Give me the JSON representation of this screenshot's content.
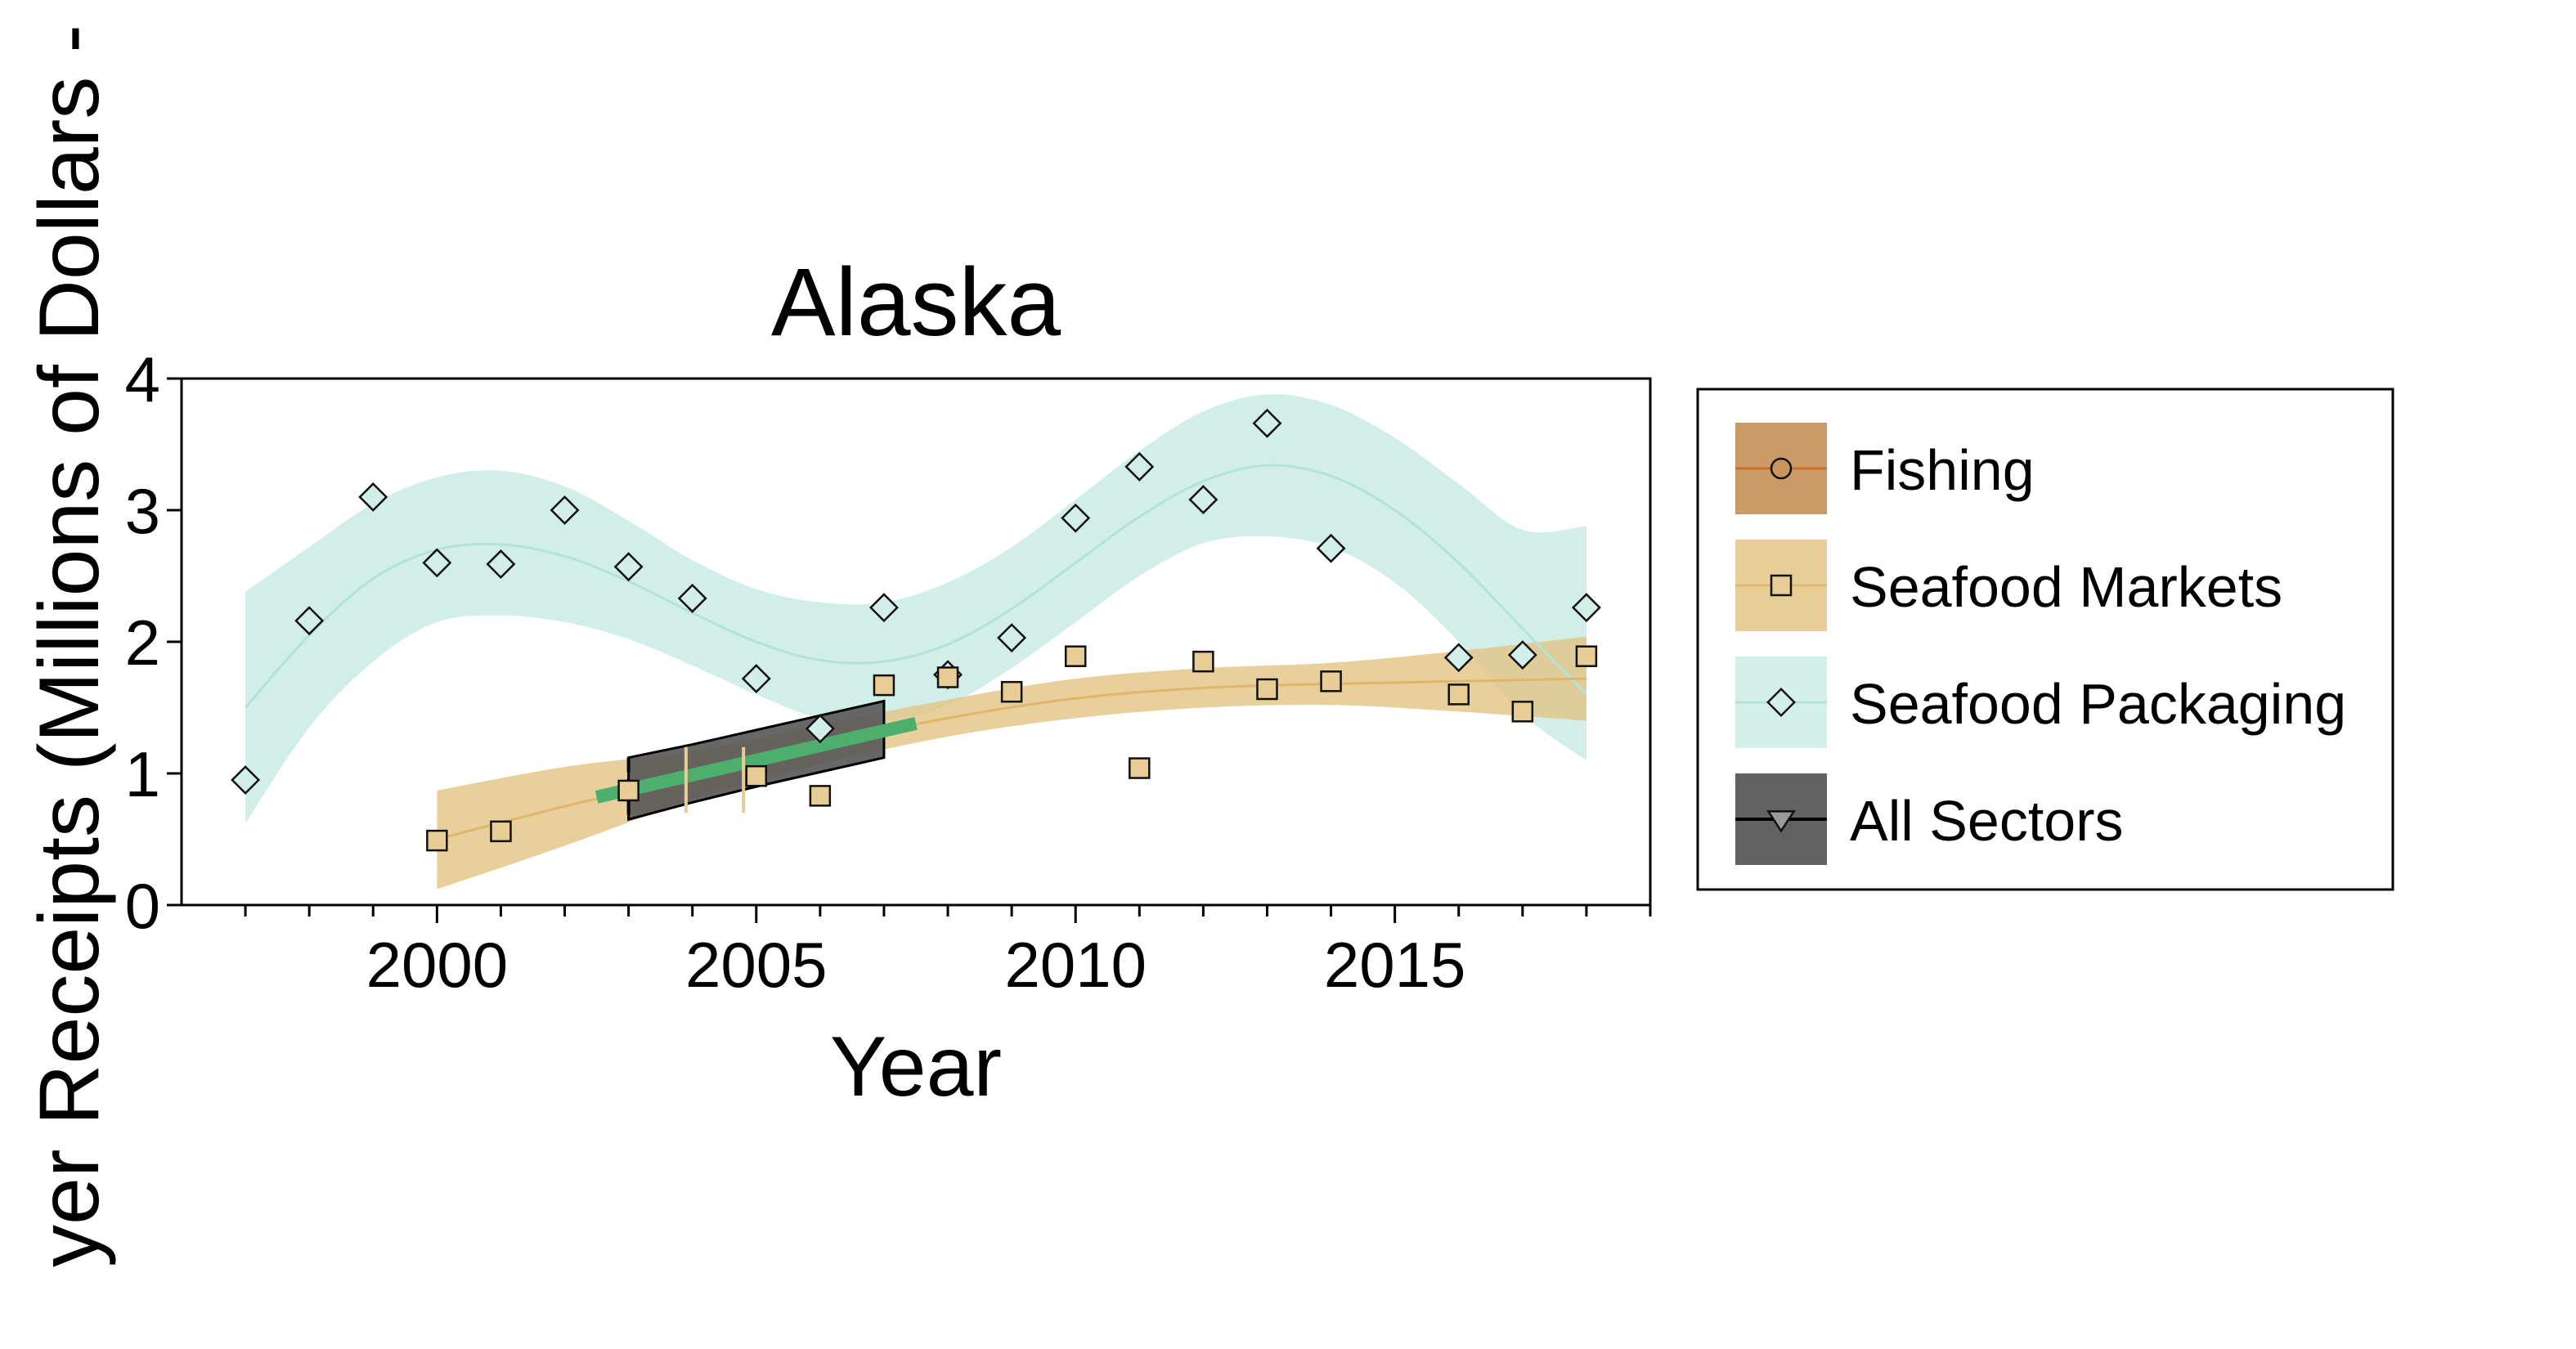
{
  "chart_data": {
    "type": "scatter",
    "title": "Alaska",
    "xlabel": "Year",
    "ylabel": "yer Receipts (Millions of Dollars -",
    "xlim": [
      1996,
      2019
    ],
    "ylim": [
      0,
      4
    ],
    "x_ticks": [
      2000,
      2005,
      2010,
      2015
    ],
    "x_tick_labels": [
      "2000",
      "2005",
      "2010",
      "2015"
    ],
    "y_ticks": [
      0,
      1,
      2,
      3,
      4
    ],
    "y_tick_labels": [
      "0",
      "1",
      "2",
      "3",
      "4"
    ],
    "grid": false,
    "legend_position": "right",
    "series": [
      {
        "name": "Fishing",
        "marker": "circle",
        "color": "#c8955f",
        "line_color": "#c8702a",
        "x": [],
        "y": []
      },
      {
        "name": "Seafood Markets",
        "marker": "square",
        "color": "#e8cc95",
        "line_color": "#e0b76a",
        "x": [
          2000,
          2001,
          2003,
          2005,
          2006,
          2007,
          2008,
          2009,
          2010,
          2011,
          2012,
          2013,
          2014,
          2016,
          2017,
          2018
        ],
        "y": [
          0.49,
          0.56,
          0.87,
          0.98,
          0.83,
          1.67,
          1.73,
          1.62,
          1.89,
          1.04,
          1.85,
          1.64,
          1.7,
          1.6,
          1.47,
          1.89
        ],
        "fit": {
          "x": [
            2000,
            2002,
            2004,
            2006,
            2008,
            2010,
            2012,
            2014,
            2016,
            2018
          ],
          "y": [
            0.5,
            0.75,
            0.98,
            1.22,
            1.42,
            1.57,
            1.65,
            1.68,
            1.7,
            1.72
          ],
          "lower": [
            0.12,
            0.45,
            0.8,
            1.07,
            1.28,
            1.42,
            1.5,
            1.52,
            1.47,
            1.4
          ],
          "upper": [
            0.87,
            1.05,
            1.17,
            1.37,
            1.56,
            1.72,
            1.8,
            1.84,
            1.93,
            2.04
          ]
        }
      },
      {
        "name": "Seafood Packaging",
        "marker": "diamond",
        "color": "#d2eee8",
        "line_color": "#b2e2d8",
        "x": [
          1997,
          1998,
          1999,
          2000,
          2001,
          2002,
          2003,
          2004,
          2005,
          2006,
          2007,
          2008,
          2009,
          2010,
          2011,
          2012,
          2013,
          2014,
          2016,
          2017,
          2018
        ],
        "y": [
          0.95,
          2.16,
          3.1,
          2.6,
          2.59,
          3.0,
          2.57,
          2.33,
          1.72,
          1.34,
          2.26,
          1.75,
          2.03,
          2.94,
          3.33,
          3.08,
          3.66,
          2.71,
          1.88,
          1.9,
          2.26
        ],
        "fit": {
          "x": [
            1997,
            1998,
            1999,
            2000,
            2001,
            2002,
            2003,
            2004,
            2005,
            2006,
            2007,
            2008,
            2009,
            2010,
            2011,
            2012,
            2013,
            2014,
            2015,
            2016,
            2017,
            2018
          ],
          "y": [
            1.5,
            2.05,
            2.48,
            2.7,
            2.74,
            2.65,
            2.46,
            2.22,
            2.0,
            1.86,
            1.85,
            1.98,
            2.25,
            2.6,
            2.95,
            3.22,
            3.34,
            3.26,
            3.0,
            2.6,
            2.1,
            1.6
          ],
          "lower": [
            0.62,
            1.35,
            1.85,
            2.15,
            2.2,
            2.15,
            2.02,
            1.82,
            1.6,
            1.42,
            1.4,
            1.52,
            1.8,
            2.15,
            2.5,
            2.75,
            2.8,
            2.72,
            2.45,
            2.0,
            1.45,
            1.1
          ],
          "upper": [
            2.38,
            2.72,
            3.05,
            3.25,
            3.3,
            3.18,
            2.92,
            2.62,
            2.4,
            2.3,
            2.3,
            2.45,
            2.72,
            3.08,
            3.45,
            3.75,
            3.88,
            3.8,
            3.55,
            3.2,
            2.85,
            2.88
          ]
        }
      },
      {
        "name": "All Sectors",
        "marker": "triangle-down",
        "color": "#8c8c8c",
        "line_color": "#000000",
        "x": [],
        "y": [],
        "fit": {
          "x": [
            2003,
            2004,
            2005,
            2006,
            2007
          ],
          "y": [
            0.9,
            1.01,
            1.12,
            1.23,
            1.33
          ],
          "lower": [
            0.65,
            0.78,
            0.9,
            1.01,
            1.12
          ],
          "upper": [
            1.12,
            1.22,
            1.33,
            1.44,
            1.55
          ]
        }
      }
    ],
    "annotations": [
      {
        "type": "trend_segment",
        "color": "#4caf6e",
        "x": [
          2002.5,
          2007.5
        ],
        "y": [
          0.82,
          1.38
        ]
      },
      {
        "type": "vertical_marks",
        "color": "#e8cc95",
        "x": [
          2003.9,
          2004.8
        ],
        "y": [
          0.7,
          1.2
        ]
      }
    ]
  }
}
